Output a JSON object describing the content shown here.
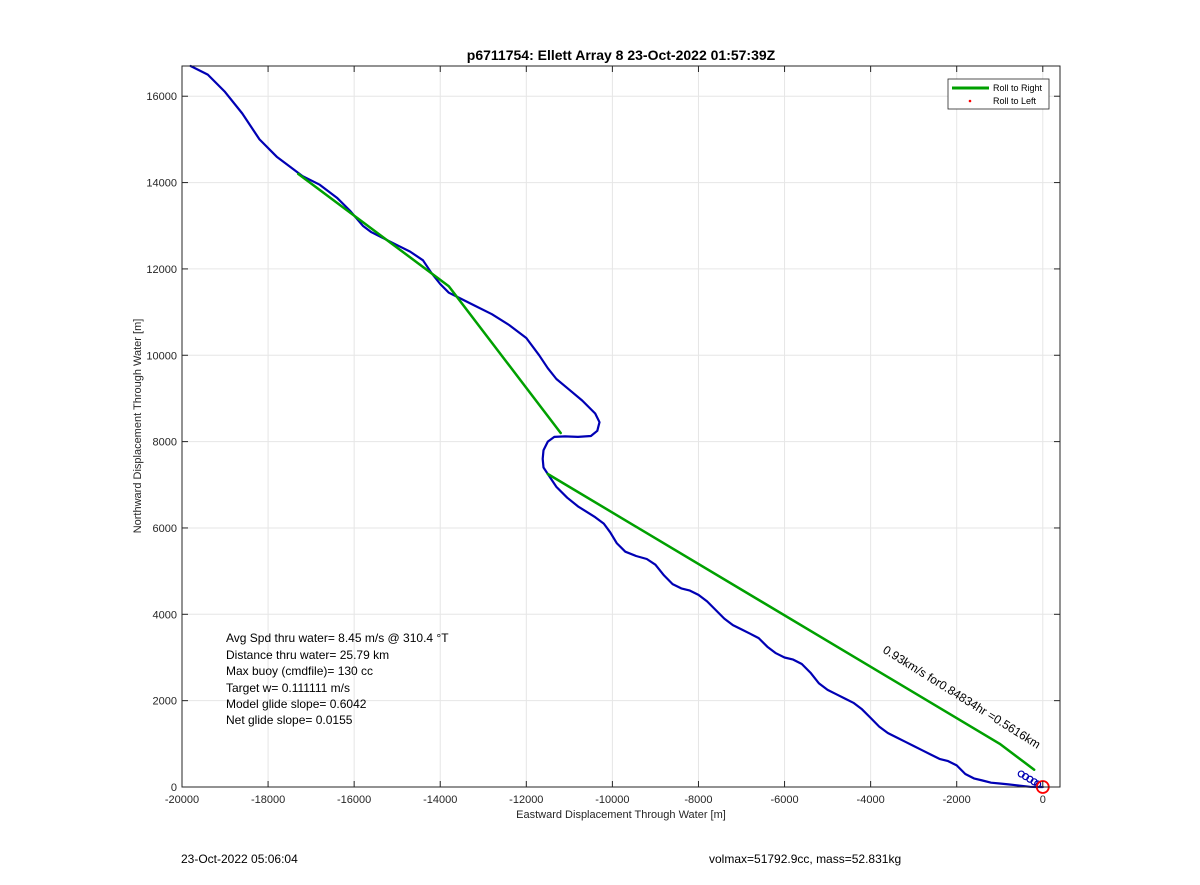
{
  "chart_data": {
    "type": "line",
    "title": "p6711754: Ellett Array 8 23-Oct-2022 01:57:39Z",
    "xlabel": "Eastward Displacement Through Water [m]",
    "ylabel": "Northward Displacement Through Water [m]",
    "xlim": [
      -20000,
      400
    ],
    "ylim": [
      0,
      16700
    ],
    "xticks": [
      -20000,
      -18000,
      -16000,
      -14000,
      -12000,
      -10000,
      -8000,
      -6000,
      -4000,
      -2000,
      0
    ],
    "yticks": [
      0,
      2000,
      4000,
      6000,
      8000,
      10000,
      12000,
      14000,
      16000
    ],
    "xtick_labels": [
      "-20000",
      "-18000",
      "-16000",
      "-14000",
      "-12000",
      "-10000",
      "-8000",
      "-6000",
      "-4000",
      "-2000",
      "0"
    ],
    "ytick_labels": [
      "0",
      "2000",
      "4000",
      "6000",
      "8000",
      "10000",
      "12000",
      "14000",
      "16000"
    ],
    "grid": true,
    "legend_position": "top-right",
    "legend": [
      {
        "label": "Roll to Right",
        "color": "#00a000",
        "style": "line"
      },
      {
        "label": "Roll to Left",
        "color": "#ff0000",
        "style": "dot"
      }
    ],
    "series": [
      {
        "color": "#0000b4",
        "x": [
          -19800,
          -19400,
          -19000,
          -18600,
          -18200,
          -17800,
          -17400,
          -17200,
          -16800,
          -16400,
          -16100,
          -15800,
          -15600,
          -15300,
          -15000,
          -14700,
          -14400,
          -14200,
          -14000,
          -13800,
          -13600,
          -13200,
          -12800,
          -12400,
          -12000,
          -11700,
          -11500,
          -11300,
          -11000,
          -10700,
          -10400,
          -10300,
          -10350,
          -10500,
          -10800,
          -11100,
          -11350,
          -11500,
          -11600,
          -11620,
          -11600,
          -11500,
          -11300,
          -11050,
          -10800,
          -10400,
          -10200,
          -10050,
          -9900,
          -9700,
          -9450,
          -9200,
          -9000,
          -8800,
          -8600,
          -8400,
          -8200,
          -8000,
          -7800,
          -7600,
          -7400,
          -7200,
          -7000,
          -6800,
          -6600,
          -6400,
          -6200,
          -6000,
          -5800,
          -5600,
          -5400,
          -5200,
          -5000,
          -4800,
          -4600,
          -4400,
          -4200,
          -4000,
          -3800,
          -3600,
          -3400,
          -3200,
          -3000,
          -2800,
          -2600,
          -2400,
          -2200,
          -2000,
          -1800,
          -1600,
          -1400,
          -1200,
          -1000,
          -800,
          -600,
          -450,
          -300,
          -150,
          -50,
          0
        ],
        "y": [
          16700,
          16500,
          16100,
          15600,
          15000,
          14600,
          14300,
          14150,
          13950,
          13650,
          13350,
          13000,
          12850,
          12700,
          12550,
          12400,
          12200,
          11900,
          11650,
          11450,
          11350,
          11150,
          10950,
          10700,
          10400,
          10000,
          9700,
          9450,
          9200,
          8950,
          8650,
          8450,
          8250,
          8130,
          8110,
          8120,
          8110,
          8000,
          7800,
          7600,
          7400,
          7250,
          6950,
          6700,
          6500,
          6250,
          6100,
          5900,
          5650,
          5450,
          5350,
          5280,
          5150,
          4900,
          4700,
          4600,
          4550,
          4450,
          4300,
          4100,
          3900,
          3750,
          3650,
          3550,
          3450,
          3250,
          3100,
          3000,
          2950,
          2850,
          2650,
          2400,
          2250,
          2150,
          2050,
          1950,
          1800,
          1600,
          1400,
          1250,
          1150,
          1050,
          950,
          850,
          750,
          650,
          600,
          500,
          300,
          200,
          150,
          100,
          80,
          60,
          40,
          20,
          5,
          0,
          0,
          0
        ]
      },
      {
        "color": "#00a000",
        "x": [
          -17300,
          -13800,
          -11200
        ],
        "y": [
          14200,
          11600,
          8200
        ]
      },
      {
        "color": "#00a000",
        "x": [
          -11500,
          -1000,
          -200
        ],
        "y": [
          7250,
          1000,
          400
        ]
      }
    ],
    "annotations": {
      "stats": [
        "Avg Spd thru water=  8.45 m/s @ 310.4 °T",
        "Distance thru water= 25.79 km",
        "Max buoy (cmdfile)= 130 cc",
        "Target w= 0.111111 m/s",
        "Model glide slope= 0.6042",
        "Net glide slope= 0.0155"
      ],
      "rotated_label": "0.93km/s for0.84834hr =0.5616km",
      "rotated_label_angle": 32,
      "endpoint_marker": {
        "x": 0,
        "y": 0,
        "color": "#ff0000"
      }
    }
  },
  "footer": {
    "timestamp": "23-Oct-2022 05:06:04",
    "mass_info": "volmax=51792.9cc, mass=52.831kg"
  }
}
